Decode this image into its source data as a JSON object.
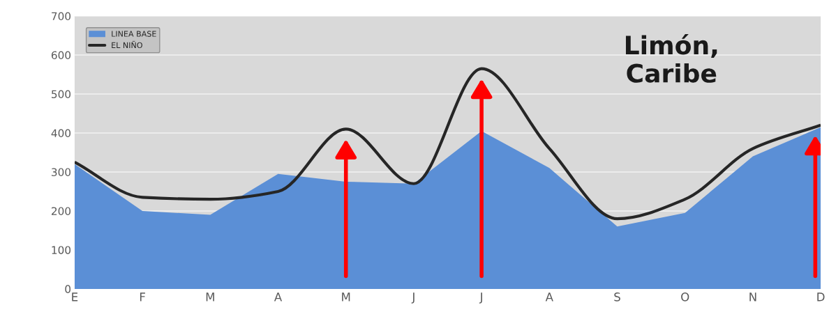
{
  "chart_data": {
    "type": "area",
    "title": "Limón,\nCaribe",
    "categories": [
      "E",
      "F",
      "M",
      "A",
      "M",
      "J",
      "J",
      "A",
      "S",
      "O",
      "N",
      "D"
    ],
    "series": [
      {
        "name": "LINEA BASE",
        "color": "#5b8fd6",
        "values": [
          320,
          200,
          190,
          295,
          275,
          270,
          405,
          310,
          160,
          195,
          340,
          415
        ]
      },
      {
        "name": "EL NIÑO",
        "type": "line",
        "color": "#262626",
        "values": [
          325,
          235,
          230,
          250,
          410,
          270,
          565,
          360,
          180,
          230,
          360,
          420
        ]
      }
    ],
    "ylim": [
      0,
      700
    ],
    "yticks": [
      0,
      100,
      200,
      300,
      400,
      500,
      600,
      700
    ],
    "grid": "y",
    "legend": "top left"
  }
}
